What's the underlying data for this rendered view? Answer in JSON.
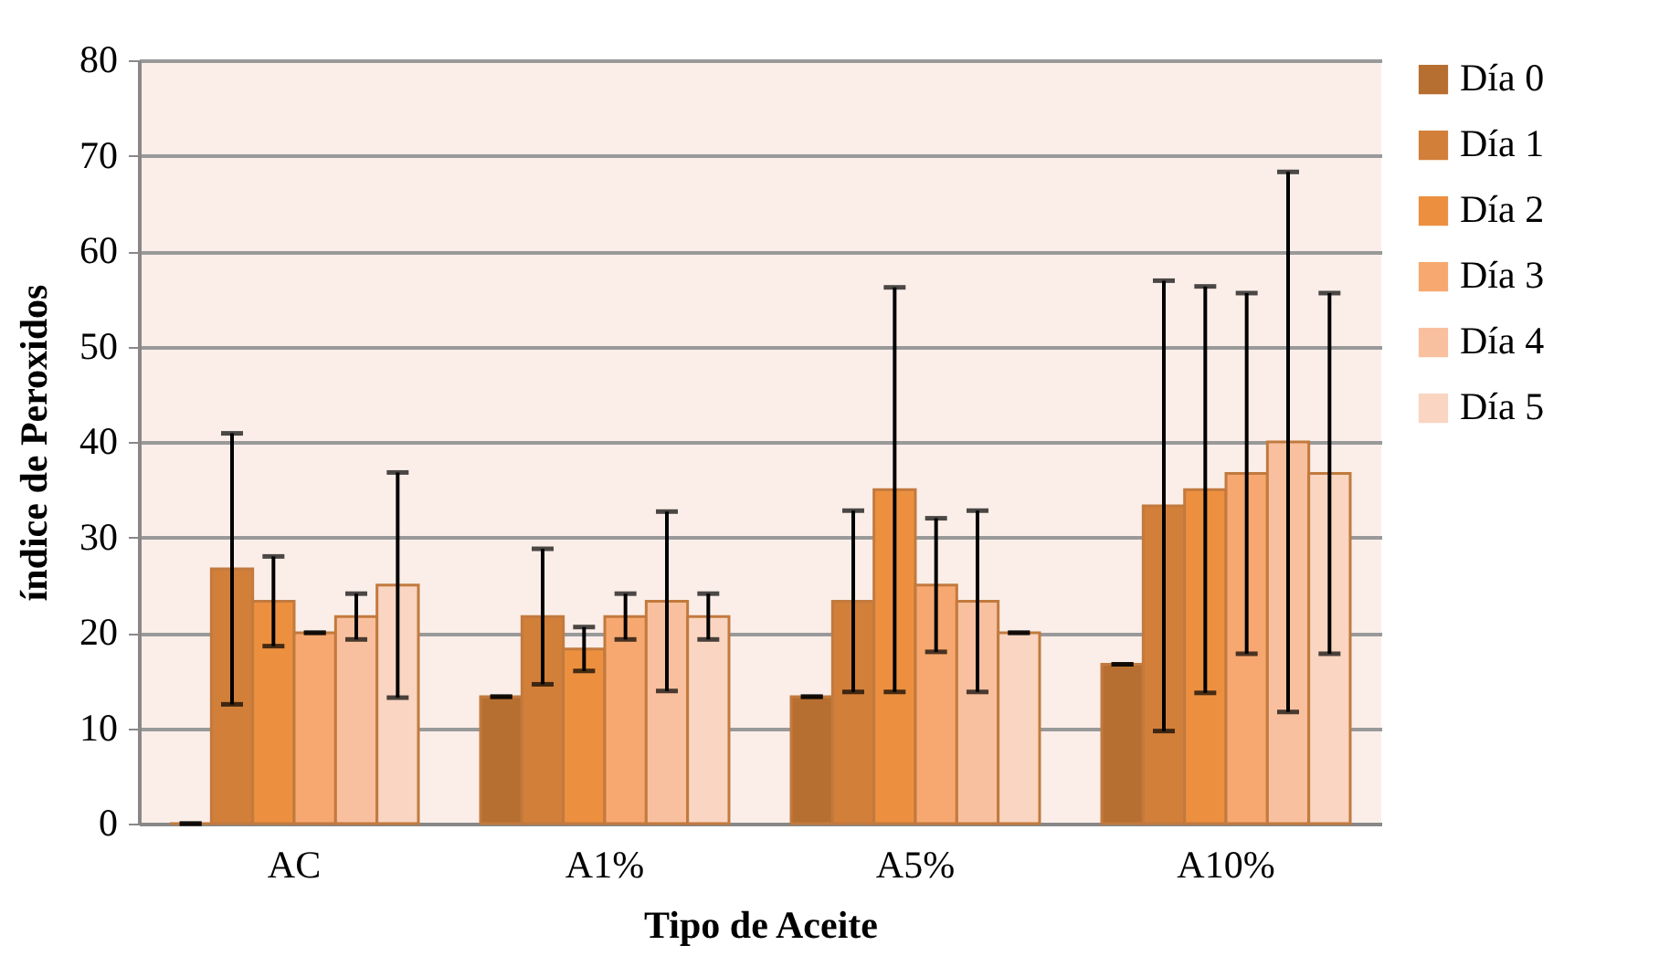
{
  "chart_data": {
    "type": "bar",
    "xlabel": "Tipo de Aceite",
    "ylabel": "índice de Peroxidos",
    "categories": [
      "AC",
      "A1%",
      "A5%",
      "A10%"
    ],
    "series": [
      {
        "name": "Día 0",
        "color": "#b66f31",
        "values": [
          0,
          13.3,
          13.3,
          16.7
        ],
        "errors": [
          0,
          0,
          0,
          0
        ]
      },
      {
        "name": "Día 1",
        "color": "#d27f3a",
        "values": [
          26.7,
          21.7,
          23.3,
          33.3
        ],
        "errors": [
          14.2,
          7.1,
          9.5,
          23.6
        ]
      },
      {
        "name": "Día 2",
        "color": "#ec9040",
        "values": [
          23.3,
          18.3,
          35,
          35
        ],
        "errors": [
          4.7,
          2.3,
          21.2,
          21.3
        ]
      },
      {
        "name": "Día 3",
        "color": "#f6a870",
        "values": [
          20,
          21.7,
          25,
          36.7
        ],
        "errors": [
          0,
          2.4,
          7,
          18.9
        ]
      },
      {
        "name": "Día 4",
        "color": "#f8c09e",
        "values": [
          21.7,
          23.3,
          23.3,
          40
        ],
        "errors": [
          2.4,
          9.4,
          9.5,
          28.3
        ]
      },
      {
        "name": "Día 5",
        "color": "#f9d5c2",
        "values": [
          25,
          21.7,
          20,
          36.7
        ],
        "errors": [
          11.8,
          2.4,
          0,
          18.9
        ]
      }
    ],
    "ylim": [
      0,
      80
    ],
    "yticks": [
      0,
      10,
      20,
      30,
      40,
      50,
      60,
      70,
      80
    ],
    "grid": "y",
    "legend": "right"
  }
}
